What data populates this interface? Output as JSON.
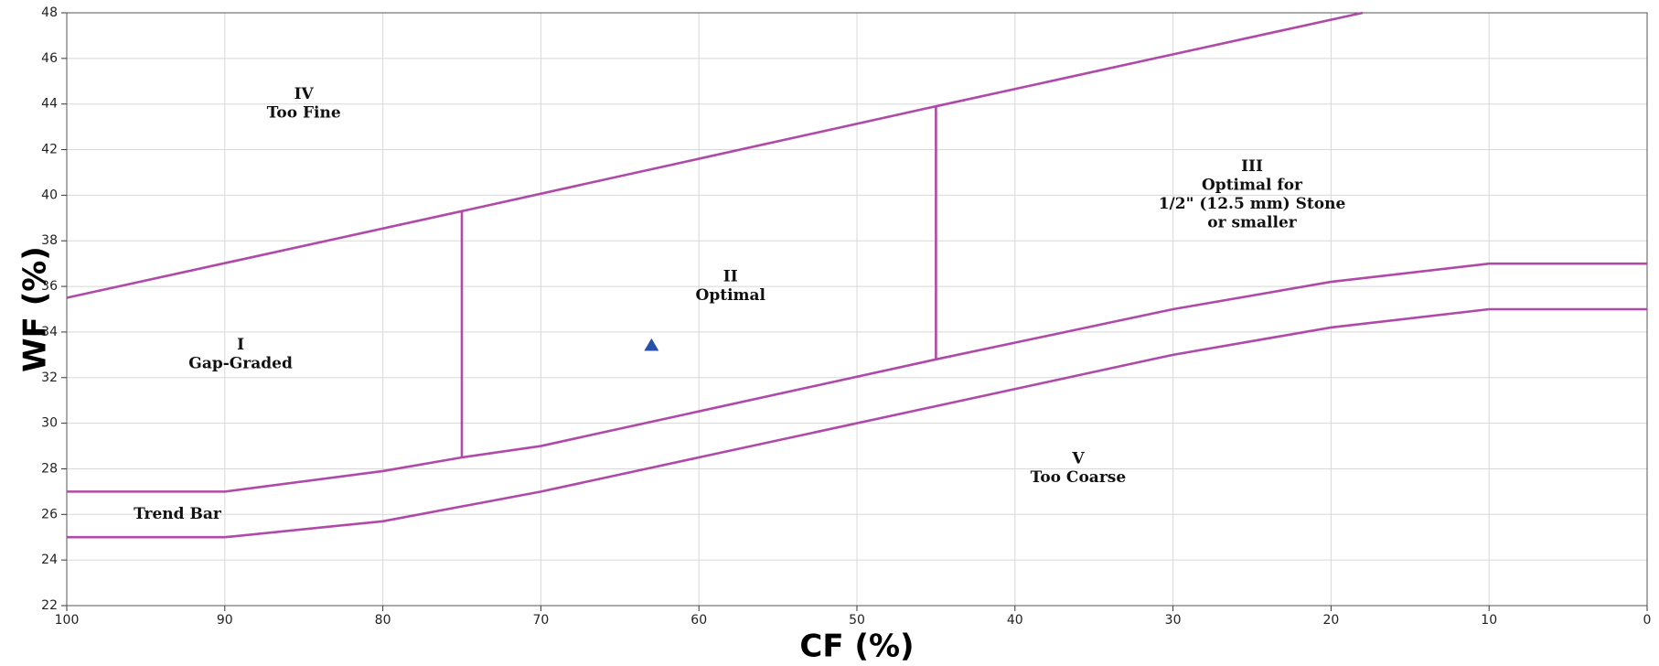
{
  "chart_data": {
    "type": "line",
    "xlabel": "CF (%)",
    "ylabel": "WF (%)",
    "xlim": [
      100,
      0
    ],
    "xticks": [
      100,
      90,
      80,
      70,
      60,
      50,
      40,
      30,
      20,
      10,
      0
    ],
    "ylim": [
      22,
      48
    ],
    "yticks": [
      22,
      24,
      26,
      28,
      30,
      32,
      34,
      36,
      38,
      40,
      42,
      44,
      46,
      48
    ],
    "grid": true,
    "line_color": "#b04aa8",
    "point_color": "#2850a8",
    "point_marker": "triangle",
    "series": [
      {
        "x": [
          100,
          75,
          45,
          18
        ],
        "values": [
          35.5,
          39.3,
          43.9,
          48
        ]
      },
      {
        "x": [
          100,
          90,
          80,
          75,
          70,
          45,
          30,
          20,
          10,
          0
        ],
        "values": [
          27,
          27,
          27.9,
          28.5,
          29,
          32.8,
          35,
          36.2,
          37,
          37
        ]
      },
      {
        "x": [
          100,
          90,
          80,
          70,
          30,
          20,
          10,
          0
        ],
        "values": [
          25,
          25,
          25.7,
          27,
          33,
          34.2,
          35,
          35
        ]
      },
      {
        "x": [
          75,
          75
        ],
        "values": [
          28.5,
          39.3
        ]
      },
      {
        "x": [
          45,
          45
        ],
        "values": [
          32.8,
          43.9
        ]
      }
    ],
    "points": [
      {
        "x": 63,
        "y": 33.4
      }
    ],
    "annotations": [
      {
        "x": 85,
        "y": 44,
        "lines": [
          "IV",
          "Too Fine"
        ]
      },
      {
        "x": 89,
        "y": 33,
        "lines": [
          "I",
          "Gap-Graded"
        ]
      },
      {
        "x": 58,
        "y": 36,
        "lines": [
          "II",
          "Optimal"
        ]
      },
      {
        "x": 25,
        "y": 40,
        "lines": [
          "III",
          "Optimal for",
          "1/2\" (12.5 mm) Stone",
          "or smaller"
        ]
      },
      {
        "x": 36,
        "y": 28,
        "lines": [
          "V",
          "Too Coarse"
        ]
      },
      {
        "x": 93,
        "y": 26,
        "lines": [
          "Trend Bar"
        ]
      }
    ]
  }
}
